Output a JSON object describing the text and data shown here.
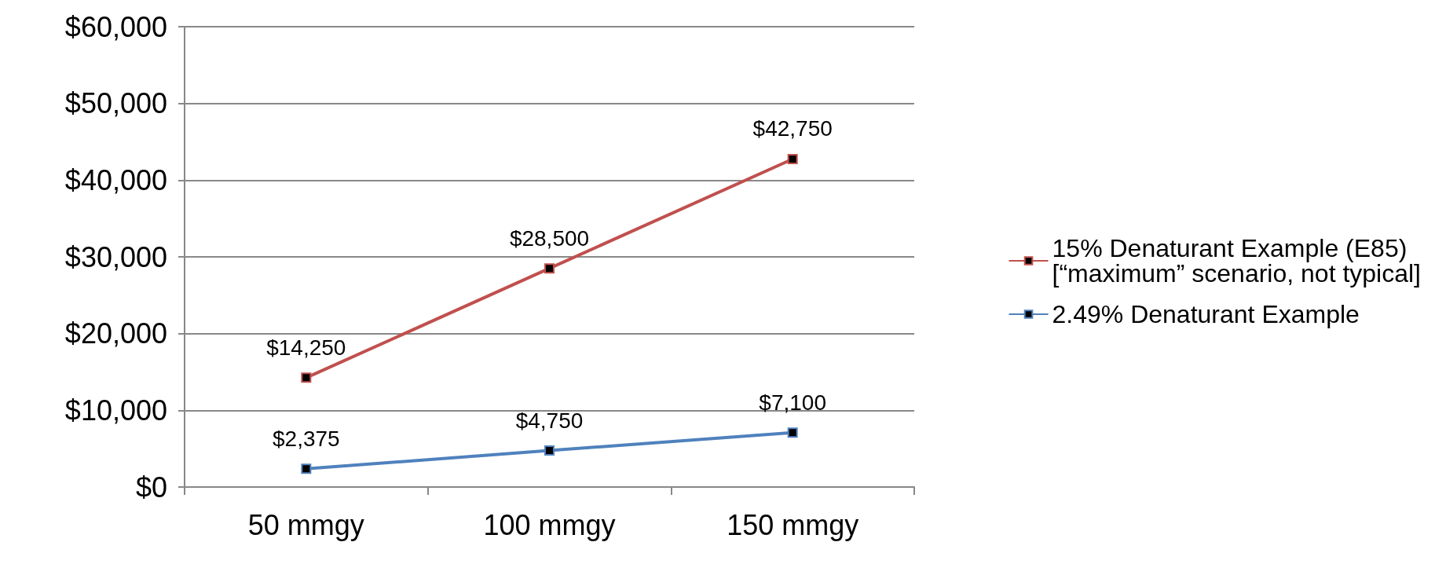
{
  "chart_data": {
    "type": "line",
    "categories": [
      "50 mmgy",
      "100 mmgy",
      "150 mmgy"
    ],
    "series": [
      {
        "name": "15% Denaturant Example (E85) [“maximum” scenario, not typical]",
        "color": "#c0504d",
        "values": [
          14250,
          28500,
          42750
        ],
        "value_labels": [
          "$14,250",
          "$28,500",
          "$42,750"
        ]
      },
      {
        "name": "2.49% Denaturant Example",
        "color": "#4f81bd",
        "values": [
          2375,
          4750,
          7100
        ],
        "value_labels": [
          "$2,375",
          "$4,750",
          "$7,100"
        ]
      }
    ],
    "ylim": [
      0,
      60000
    ],
    "yticks": [
      {
        "value": 0,
        "label": "$0"
      },
      {
        "value": 10000,
        "label": "$10,000"
      },
      {
        "value": 20000,
        "label": "$20,000"
      },
      {
        "value": 30000,
        "label": "$30,000"
      },
      {
        "value": 40000,
        "label": "$40,000"
      },
      {
        "value": 50000,
        "label": "$50,000"
      },
      {
        "value": 60000,
        "label": "$60,000"
      }
    ],
    "grid": "y",
    "legend": "right",
    "marker": "square",
    "line_style": "solid"
  }
}
